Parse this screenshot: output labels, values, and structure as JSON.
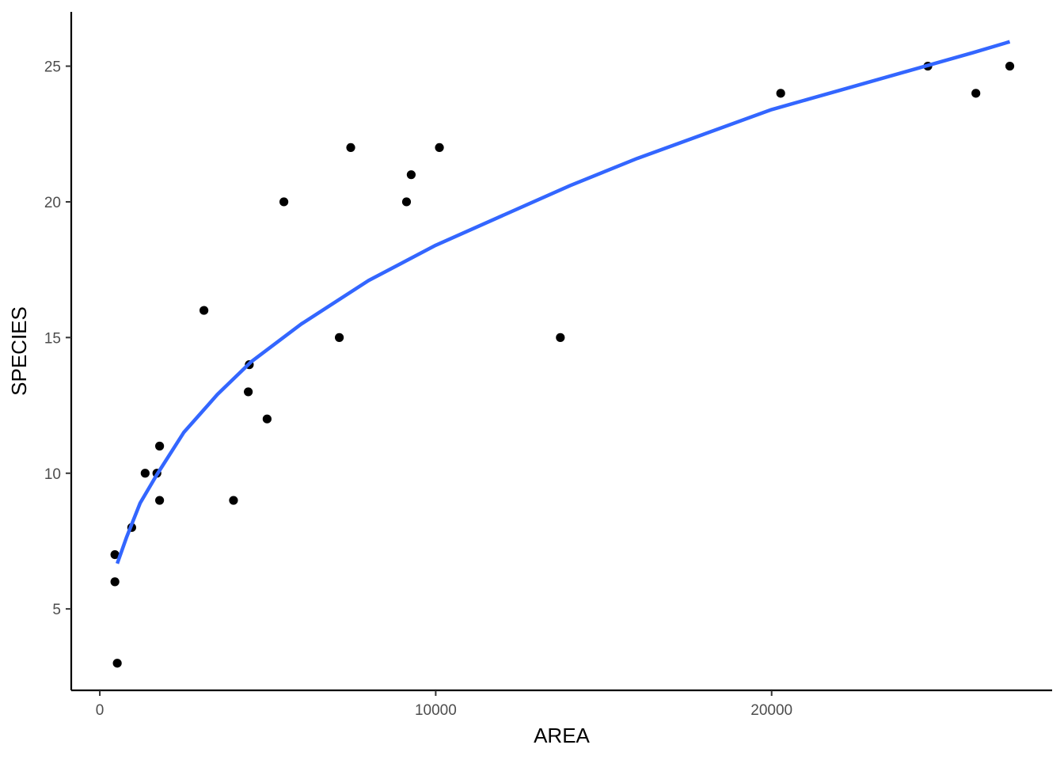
{
  "chart_data": {
    "type": "scatter",
    "title": "",
    "xlabel": "AREA",
    "ylabel": "SPECIES",
    "xlim": [
      -850,
      28350
    ],
    "ylim": [
      2,
      27
    ],
    "x_ticks": [
      0,
      10000,
      20000
    ],
    "x_tick_labels": [
      "0",
      "10000",
      "20000"
    ],
    "y_ticks": [
      5,
      10,
      15,
      20,
      25
    ],
    "y_tick_labels": [
      "5",
      "10",
      "15",
      "20",
      "25"
    ],
    "grid": false,
    "legend": "none",
    "series": [
      {
        "kind": "points",
        "color": "#000000",
        "points": [
          {
            "x": 450,
            "y": 7
          },
          {
            "x": 450,
            "y": 6
          },
          {
            "x": 520,
            "y": 3
          },
          {
            "x": 950,
            "y": 8
          },
          {
            "x": 1350,
            "y": 10
          },
          {
            "x": 1700,
            "y": 10
          },
          {
            "x": 1780,
            "y": 11
          },
          {
            "x": 1780,
            "y": 9
          },
          {
            "x": 3100,
            "y": 16
          },
          {
            "x": 3980,
            "y": 9
          },
          {
            "x": 4420,
            "y": 13
          },
          {
            "x": 4450,
            "y": 14
          },
          {
            "x": 4980,
            "y": 12
          },
          {
            "x": 5480,
            "y": 20
          },
          {
            "x": 7130,
            "y": 15
          },
          {
            "x": 7470,
            "y": 22
          },
          {
            "x": 9130,
            "y": 20
          },
          {
            "x": 9270,
            "y": 21
          },
          {
            "x": 10110,
            "y": 22
          },
          {
            "x": 13710,
            "y": 15
          },
          {
            "x": 20270,
            "y": 24
          },
          {
            "x": 24650,
            "y": 25
          },
          {
            "x": 26080,
            "y": 24
          },
          {
            "x": 27090,
            "y": 25
          }
        ]
      },
      {
        "kind": "fitted-curve",
        "color": "#3366FF",
        "points": [
          {
            "x": 520,
            "y": 6.67
          },
          {
            "x": 800,
            "y": 7.65
          },
          {
            "x": 1200,
            "y": 8.9
          },
          {
            "x": 1700,
            "y": 9.95
          },
          {
            "x": 2500,
            "y": 11.5
          },
          {
            "x": 3500,
            "y": 12.9
          },
          {
            "x": 4500,
            "y": 14.1
          },
          {
            "x": 6000,
            "y": 15.5
          },
          {
            "x": 8000,
            "y": 17.1
          },
          {
            "x": 10000,
            "y": 18.4
          },
          {
            "x": 12000,
            "y": 19.5
          },
          {
            "x": 14000,
            "y": 20.6
          },
          {
            "x": 16000,
            "y": 21.6
          },
          {
            "x": 18000,
            "y": 22.5
          },
          {
            "x": 20000,
            "y": 23.4
          },
          {
            "x": 22000,
            "y": 24.1
          },
          {
            "x": 24000,
            "y": 24.8
          },
          {
            "x": 26000,
            "y": 25.5
          },
          {
            "x": 27090,
            "y": 25.9
          }
        ]
      }
    ]
  }
}
